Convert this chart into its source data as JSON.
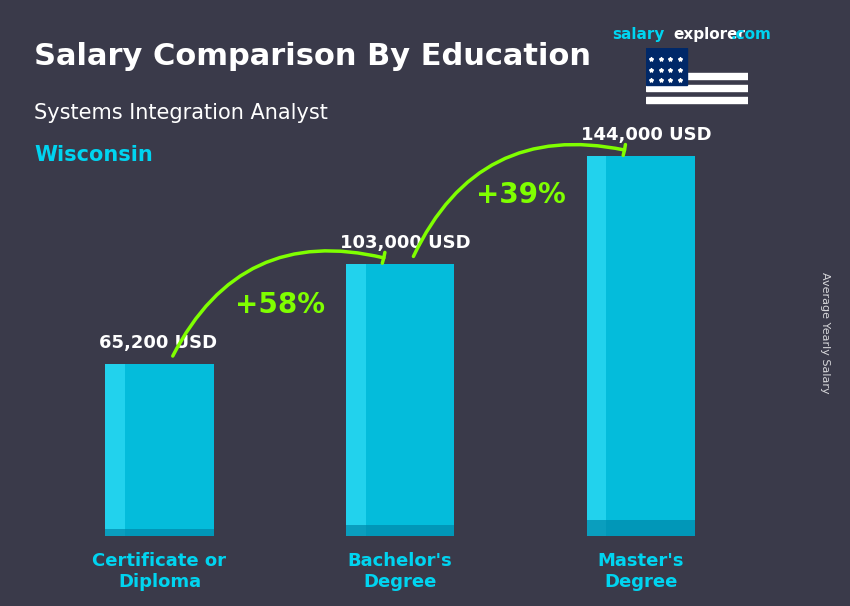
{
  "title_main": "Salary Comparison By Education",
  "title_sub": "Systems Integration Analyst",
  "title_location": "Wisconsin",
  "categories": [
    "Certificate or\nDiploma",
    "Bachelor's\nDegree",
    "Master's\nDegree"
  ],
  "values": [
    65200,
    103000,
    144000
  ],
  "value_labels": [
    "65,200 USD",
    "103,000 USD",
    "144,000 USD"
  ],
  "pct_labels": [
    "+58%",
    "+39%"
  ],
  "bar_color_top": "#00d4f0",
  "bar_color_mid": "#00aacc",
  "bar_color_bottom": "#0088aa",
  "bar_color_face": "#00c8e8",
  "background_color": "#1a1a2e",
  "text_color_white": "#ffffff",
  "text_color_cyan": "#00d4f0",
  "text_color_green": "#7fff00",
  "ylabel": "Average Yearly Salary",
  "brand_salary": "salary",
  "brand_explorer": "explorer",
  "brand_com": ".com",
  "ylim": [
    0,
    170000
  ],
  "bar_width": 0.45
}
